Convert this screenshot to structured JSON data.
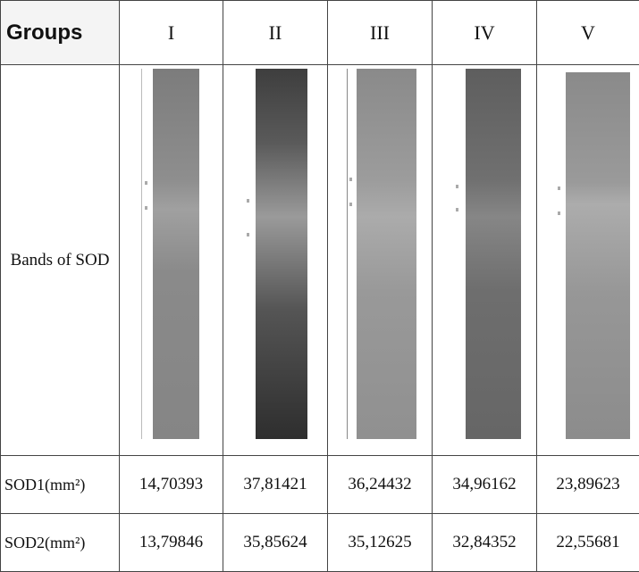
{
  "table": {
    "header": [
      "Groups",
      "I",
      "II",
      "III",
      "IV",
      "V"
    ],
    "rows": [
      [
        "Bands of SOD"
      ],
      [
        "SOD1(mm²)",
        "14,70393",
        "37,81421",
        "36,24432",
        "34,96162",
        "23,89623"
      ],
      [
        "SOD2(mm²)",
        "13,79846",
        "35,85624",
        "35,12625",
        "32,84352",
        "22,55681"
      ]
    ]
  }
}
